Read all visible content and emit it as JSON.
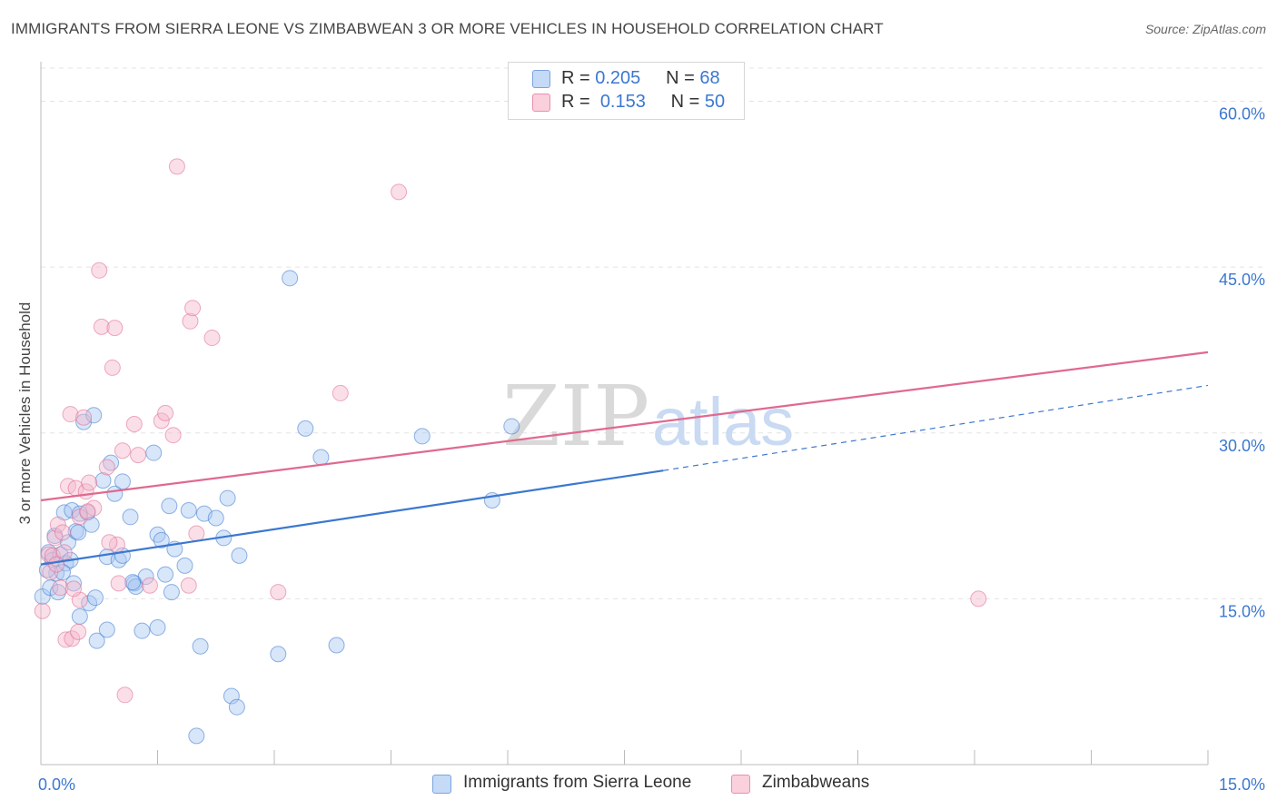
{
  "title": "IMMIGRANTS FROM SIERRA LEONE VS ZIMBABWEAN 3 OR MORE VEHICLES IN HOUSEHOLD CORRELATION CHART",
  "source": "Source: ZipAtlas.com",
  "watermark": {
    "zip": "ZIP",
    "atlas": "atlas"
  },
  "legend": {
    "rows": [
      {
        "r_label": "R =",
        "r_value": "0.205",
        "n_label": "N =",
        "n_value": "68",
        "color": "#a9c8f2"
      },
      {
        "r_label": "R =",
        "r_value": "0.153",
        "n_label": "N =",
        "n_value": "50",
        "color": "#f5b7cb"
      }
    ]
  },
  "bottom_legend": [
    {
      "label": "Immigrants from Sierra Leone",
      "color": "#a9c8f2"
    },
    {
      "label": "Zimbabweans",
      "color": "#f5b7cb"
    }
  ],
  "chart_data": {
    "type": "scatter",
    "title": "IMMIGRANTS FROM SIERRA LEONE VS ZIMBABWEAN 3 OR MORE VEHICLES IN HOUSEHOLD CORRELATION CHART",
    "xlabel": "",
    "ylabel": "3 or more Vehicles in Household",
    "xlim": [
      0,
      15
    ],
    "ylim": [
      0,
      63
    ],
    "x_tick_labels": [
      {
        "value": 0,
        "label": "0.0%"
      },
      {
        "value": 15,
        "label": "15.0%"
      }
    ],
    "y_tick_labels": [
      {
        "value": 15,
        "label": "15.0%"
      },
      {
        "value": 30,
        "label": "30.0%"
      },
      {
        "value": 45,
        "label": "45.0%"
      },
      {
        "value": 60,
        "label": "60.0%"
      }
    ],
    "grid": true,
    "legend_position": "top-center",
    "series": [
      {
        "name": "Immigrants from Sierra Leone",
        "color": "#3b78d0",
        "fill": "#a9c8f2",
        "points": [
          [
            0.02,
            15.2
          ],
          [
            0.1,
            19.2
          ],
          [
            0.12,
            16.0
          ],
          [
            0.15,
            18.5
          ],
          [
            0.18,
            20.7
          ],
          [
            0.2,
            17.3
          ],
          [
            0.22,
            15.6
          ],
          [
            0.25,
            19.0
          ],
          [
            0.3,
            22.8
          ],
          [
            0.32,
            18.2
          ],
          [
            0.35,
            20.1
          ],
          [
            0.38,
            18.5
          ],
          [
            0.4,
            23.0
          ],
          [
            0.42,
            16.4
          ],
          [
            0.45,
            21.1
          ],
          [
            0.5,
            22.7
          ],
          [
            0.5,
            13.4
          ],
          [
            0.55,
            31.0
          ],
          [
            0.6,
            22.8
          ],
          [
            0.62,
            14.6
          ],
          [
            0.65,
            21.7
          ],
          [
            0.68,
            31.6
          ],
          [
            0.7,
            15.1
          ],
          [
            0.72,
            11.2
          ],
          [
            0.8,
            25.7
          ],
          [
            0.85,
            12.2
          ],
          [
            0.85,
            18.8
          ],
          [
            0.9,
            27.3
          ],
          [
            0.95,
            24.5
          ],
          [
            1.0,
            18.5
          ],
          [
            1.05,
            18.9
          ],
          [
            1.05,
            25.6
          ],
          [
            1.15,
            22.4
          ],
          [
            1.2,
            16.4
          ],
          [
            1.22,
            16.1
          ],
          [
            1.3,
            12.1
          ],
          [
            1.35,
            17.0
          ],
          [
            1.45,
            28.2
          ],
          [
            1.5,
            12.4
          ],
          [
            1.5,
            20.8
          ],
          [
            1.55,
            20.3
          ],
          [
            1.6,
            17.2
          ],
          [
            1.65,
            23.4
          ],
          [
            1.68,
            15.6
          ],
          [
            1.72,
            19.5
          ],
          [
            1.85,
            18.0
          ],
          [
            1.9,
            23.0
          ],
          [
            2.0,
            2.6
          ],
          [
            2.05,
            10.7
          ],
          [
            2.1,
            22.7
          ],
          [
            2.25,
            22.3
          ],
          [
            2.35,
            20.5
          ],
          [
            2.4,
            24.1
          ],
          [
            2.45,
            6.2
          ],
          [
            2.52,
            5.2
          ],
          [
            2.55,
            18.9
          ],
          [
            3.05,
            10.0
          ],
          [
            3.2,
            44.0
          ],
          [
            3.4,
            30.4
          ],
          [
            3.6,
            27.8
          ],
          [
            3.8,
            10.8
          ],
          [
            4.9,
            29.7
          ],
          [
            5.8,
            23.9
          ],
          [
            6.05,
            30.6
          ],
          [
            0.08,
            17.6
          ],
          [
            0.28,
            17.4
          ],
          [
            0.48,
            21.0
          ],
          [
            1.18,
            16.5
          ]
        ],
        "trendline": {
          "x": [
            0,
            8.0
          ],
          "y": [
            18.1,
            26.6
          ],
          "dashed_to": [
            15,
            34.3
          ]
        }
      },
      {
        "name": "Zimbabweans",
        "color": "#e0698f",
        "fill": "#f5b7cb",
        "points": [
          [
            0.02,
            13.9
          ],
          [
            0.1,
            19.0
          ],
          [
            0.12,
            17.4
          ],
          [
            0.15,
            18.9
          ],
          [
            0.18,
            20.5
          ],
          [
            0.22,
            21.7
          ],
          [
            0.25,
            16.0
          ],
          [
            0.28,
            21.0
          ],
          [
            0.3,
            19.2
          ],
          [
            0.32,
            11.3
          ],
          [
            0.35,
            25.2
          ],
          [
            0.38,
            31.7
          ],
          [
            0.4,
            11.4
          ],
          [
            0.45,
            25.0
          ],
          [
            0.48,
            12.0
          ],
          [
            0.5,
            22.4
          ],
          [
            0.5,
            14.9
          ],
          [
            0.55,
            31.4
          ],
          [
            0.58,
            24.7
          ],
          [
            0.62,
            25.5
          ],
          [
            0.68,
            23.2
          ],
          [
            0.75,
            44.7
          ],
          [
            0.78,
            39.6
          ],
          [
            0.85,
            26.9
          ],
          [
            0.92,
            35.9
          ],
          [
            0.95,
            39.5
          ],
          [
            0.98,
            19.9
          ],
          [
            1.0,
            16.4
          ],
          [
            1.05,
            28.4
          ],
          [
            1.08,
            6.3
          ],
          [
            1.2,
            30.8
          ],
          [
            1.25,
            28.0
          ],
          [
            1.55,
            31.1
          ],
          [
            1.6,
            31.8
          ],
          [
            1.7,
            29.8
          ],
          [
            1.75,
            54.1
          ],
          [
            1.9,
            16.2
          ],
          [
            1.92,
            40.1
          ],
          [
            1.95,
            41.3
          ],
          [
            2.0,
            20.9
          ],
          [
            2.2,
            38.6
          ],
          [
            3.05,
            15.6
          ],
          [
            3.85,
            33.6
          ],
          [
            4.6,
            51.8
          ],
          [
            12.05,
            15.0
          ],
          [
            0.2,
            18.1
          ],
          [
            0.42,
            15.9
          ],
          [
            0.6,
            22.9
          ],
          [
            0.88,
            20.1
          ],
          [
            1.4,
            16.2
          ]
        ],
        "trendline": {
          "x": [
            0,
            15
          ],
          "y": [
            23.9,
            37.3
          ]
        }
      }
    ]
  }
}
